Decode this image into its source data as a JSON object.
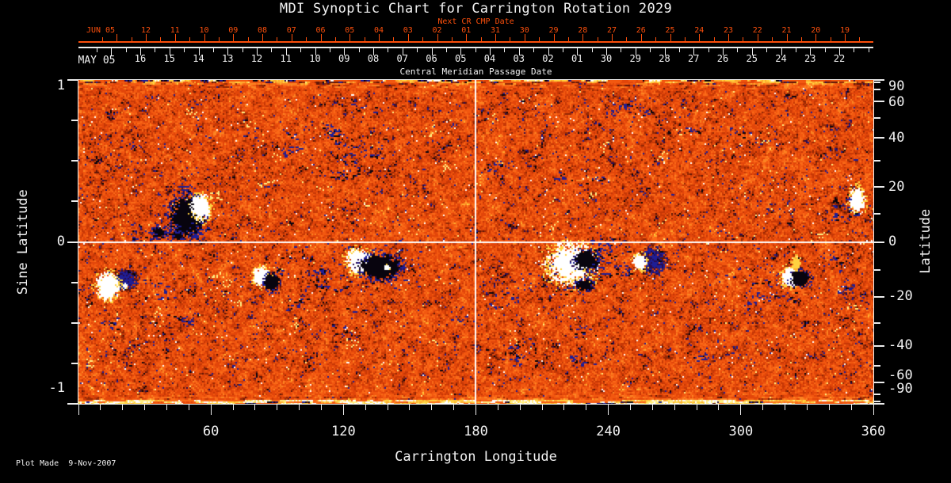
{
  "title": "MDI Synoptic Chart for Carrington Rotation 2029",
  "colors": {
    "accent_orange": "#fc4f0c",
    "text_white": "#f2f2f2",
    "background": "#000000",
    "map_base_orange": "#e84c10",
    "axis_white": "#ececec"
  },
  "top_axis_next_cr": {
    "label": "Next CR CMP Date",
    "month_label": "JUN 05",
    "tick_labels": [
      "12",
      "11",
      "10",
      "09",
      "08",
      "07",
      "06",
      "05",
      "04",
      "03",
      "02",
      "01",
      "31",
      "30",
      "29",
      "28",
      "27",
      "26",
      "25",
      "24",
      "23",
      "22",
      "21",
      "20",
      "19"
    ]
  },
  "top_axis_cmp": {
    "label": "Central Meridian Passage Date",
    "month_label": "MAY 05",
    "tick_labels": [
      "16",
      "15",
      "14",
      "13",
      "12",
      "11",
      "10",
      "09",
      "08",
      "07",
      "06",
      "05",
      "04",
      "03",
      "02",
      "01",
      "30",
      "29",
      "28",
      "27",
      "26",
      "25",
      "24",
      "23",
      "22"
    ]
  },
  "x_axis": {
    "label": "Carrington Longitude",
    "tick_labels": [
      "60",
      "120",
      "180",
      "240",
      "300",
      "360"
    ]
  },
  "y_axis_left": {
    "label": "Sine Latitude",
    "tick_labels": [
      "1",
      "0",
      "-1"
    ]
  },
  "y_axis_right": {
    "label": "Latitude",
    "tick_labels": [
      "90",
      "60",
      "40",
      "20",
      "0",
      "-20",
      "-40",
      "-60",
      "-90"
    ]
  },
  "footer": {
    "plot_made": "Plot Made  9-Nov-2007"
  },
  "chart_data": {
    "type": "heatmap",
    "title": "MDI Synoptic Chart for Carrington Rotation 2029",
    "xlabel": "Carrington Longitude",
    "xlim": [
      0,
      360
    ],
    "x_ticks": [
      60,
      120,
      180,
      240,
      300,
      360
    ],
    "x_minor_step_deg": 10,
    "ylabel_left": "Sine Latitude",
    "ylim_sine_latitude": [
      -1,
      1
    ],
    "left_ticks_sine": [
      1,
      0,
      -1
    ],
    "left_minor_step_sine": 0.25,
    "ylabel_right": "Latitude",
    "right_ticks_deg": [
      90,
      60,
      40,
      20,
      0,
      -20,
      -40,
      -60,
      -90
    ],
    "right_minor_step_deg": 10,
    "colormap": "magnetic flux: black/navy (negative) -> red-orange (quiet) -> yellow/white (positive)",
    "crosshair": {
      "longitude_deg": 180,
      "sine_latitude": 0
    },
    "top_axes": {
      "next_cr_cmp_date": {
        "month": "JUN 05",
        "days": [
          "12",
          "11",
          "10",
          "09",
          "08",
          "07",
          "06",
          "05",
          "04",
          "03",
          "02",
          "01",
          "31",
          "30",
          "29",
          "28",
          "27",
          "26",
          "25",
          "24",
          "23",
          "22",
          "21",
          "20",
          "19"
        ]
      },
      "central_meridian_passage_date": {
        "month": "MAY 05",
        "days": [
          "16",
          "15",
          "14",
          "13",
          "12",
          "11",
          "10",
          "09",
          "08",
          "07",
          "06",
          "05",
          "04",
          "03",
          "02",
          "01",
          "30",
          "29",
          "28",
          "27",
          "26",
          "25",
          "24",
          "23",
          "22"
        ]
      }
    },
    "active_regions": [
      {
        "longitude_deg": 49,
        "latitude_deg": 9,
        "description": "large bipolar region, black leading / white trailing"
      },
      {
        "longitude_deg": 13,
        "latitude_deg": -16,
        "description": "small bipolar region, white plage with dark core"
      },
      {
        "longitude_deg": 85,
        "latitude_deg": -13,
        "description": "compact bipolar pair, white left / black right"
      },
      {
        "longitude_deg": 133,
        "latitude_deg": -8,
        "description": "complex region, white plage and elongated black core"
      },
      {
        "longitude_deg": 224,
        "latitude_deg": -8,
        "description": "largest complex: bright white plage with strong black spots"
      },
      {
        "longitude_deg": 259,
        "latitude_deg": -7,
        "description": "small white spot with dark trailing speckle"
      },
      {
        "longitude_deg": 326,
        "latitude_deg": -13,
        "description": "small bipolar region with yellow streak"
      },
      {
        "longitude_deg": 352,
        "latitude_deg": 15,
        "description": "bright white/yellow plage near right edge with navy streaks"
      }
    ],
    "polar_bands": "streaky mixed white/yellow/navy noise along top (north) and bottom (south) edges"
  }
}
